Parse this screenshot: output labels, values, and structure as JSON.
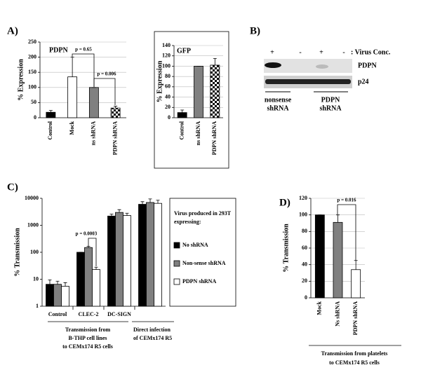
{
  "panel_labels": [
    "A)",
    "B)",
    "C)",
    "D)"
  ],
  "chart_data": [
    {
      "type": "bar",
      "title": "PDPN",
      "ylabel": "% Expression",
      "categories": [
        "Control",
        "Mock",
        "ns shRNA",
        "PDPN shRNA"
      ],
      "values": [
        18,
        135,
        100,
        32
      ],
      "errors": [
        6,
        65,
        0,
        6
      ],
      "colors": [
        "#000000",
        "#ffffff",
        "#808080",
        "#000000"
      ],
      "checkered": [
        false,
        false,
        false,
        true
      ],
      "ylim": [
        0,
        250
      ],
      "yticks": [
        0,
        50,
        100,
        150,
        200,
        250
      ],
      "grid": true,
      "annotations": [
        "p = 0.65",
        "p = 0.006"
      ]
    },
    {
      "type": "bar",
      "title": "GFP",
      "ylabel": "% Expression",
      "categories": [
        "Control",
        "ns shRNA",
        "PDPN shRNA"
      ],
      "values": [
        10,
        100,
        102
      ],
      "errors": [
        5,
        0,
        13
      ],
      "colors": [
        "#000000",
        "#808080",
        "#000000"
      ],
      "checkered": [
        false,
        false,
        true
      ],
      "ylim": [
        0,
        140
      ],
      "yticks": [
        0,
        20,
        40,
        60,
        80,
        100,
        120,
        140
      ],
      "grid": true
    },
    {
      "type": "grouped_bar",
      "ylabel": "% Transmission",
      "categories": [
        "Control",
        "CLEC-2",
        "DC-SIGN",
        null
      ],
      "series": [
        {
          "name": "No shRNA",
          "color": "#000000",
          "values": [
            6.5,
            100,
            2200,
            6000
          ],
          "errors": [
            3,
            0,
            400,
            1500
          ]
        },
        {
          "name": "Non-sense shRNA",
          "color": "#808080",
          "values": [
            6.5,
            150,
            3000,
            7000
          ],
          "errors": [
            2,
            15,
            800,
            2500
          ]
        },
        {
          "name": "PDPN shRNA",
          "color": "#ffffff",
          "values": [
            5.5,
            23,
            2300,
            6500
          ],
          "errors": [
            2,
            5,
            500,
            2000
          ]
        }
      ],
      "log_scale": true,
      "ylim": [
        1,
        10000
      ],
      "yticks": [
        1,
        10,
        100,
        1000,
        10000
      ],
      "grid": false,
      "legend": "right",
      "legend_title": [
        "Virus produced in 293T",
        "expressing:"
      ],
      "annotations": [
        "p = 0.0003"
      ],
      "group_captions": [
        [
          "Transmission from",
          "B-THP cell lines",
          "to CEMx174 R5 cells"
        ],
        [
          "Direct infection",
          "of CEMx174 R5"
        ]
      ]
    },
    {
      "type": "bar",
      "ylabel": "% Transmission",
      "categories": [
        "Mock",
        "Ns shRNA",
        "PDPN shRNA"
      ],
      "values": [
        100,
        91,
        34
      ],
      "errors": [
        0,
        9,
        11
      ],
      "colors": [
        "#000000",
        "#808080",
        "#ffffff"
      ],
      "ylim": [
        0,
        120
      ],
      "yticks": [
        0,
        20,
        40,
        60,
        80,
        100,
        120
      ],
      "grid": true,
      "annotations": [
        "p = 0.016"
      ],
      "caption": [
        "Transmission from platelets",
        "to CEMx174 R5 cells"
      ]
    }
  ],
  "blot": {
    "lanes": [
      "+",
      "-",
      "+",
      "-"
    ],
    "lanes_label": ": Virus Conc.",
    "bands": [
      "PDPN",
      "p24"
    ],
    "groups": [
      [
        "nonsense",
        "shRNA"
      ],
      [
        "PDPN",
        "shRNA"
      ]
    ]
  }
}
